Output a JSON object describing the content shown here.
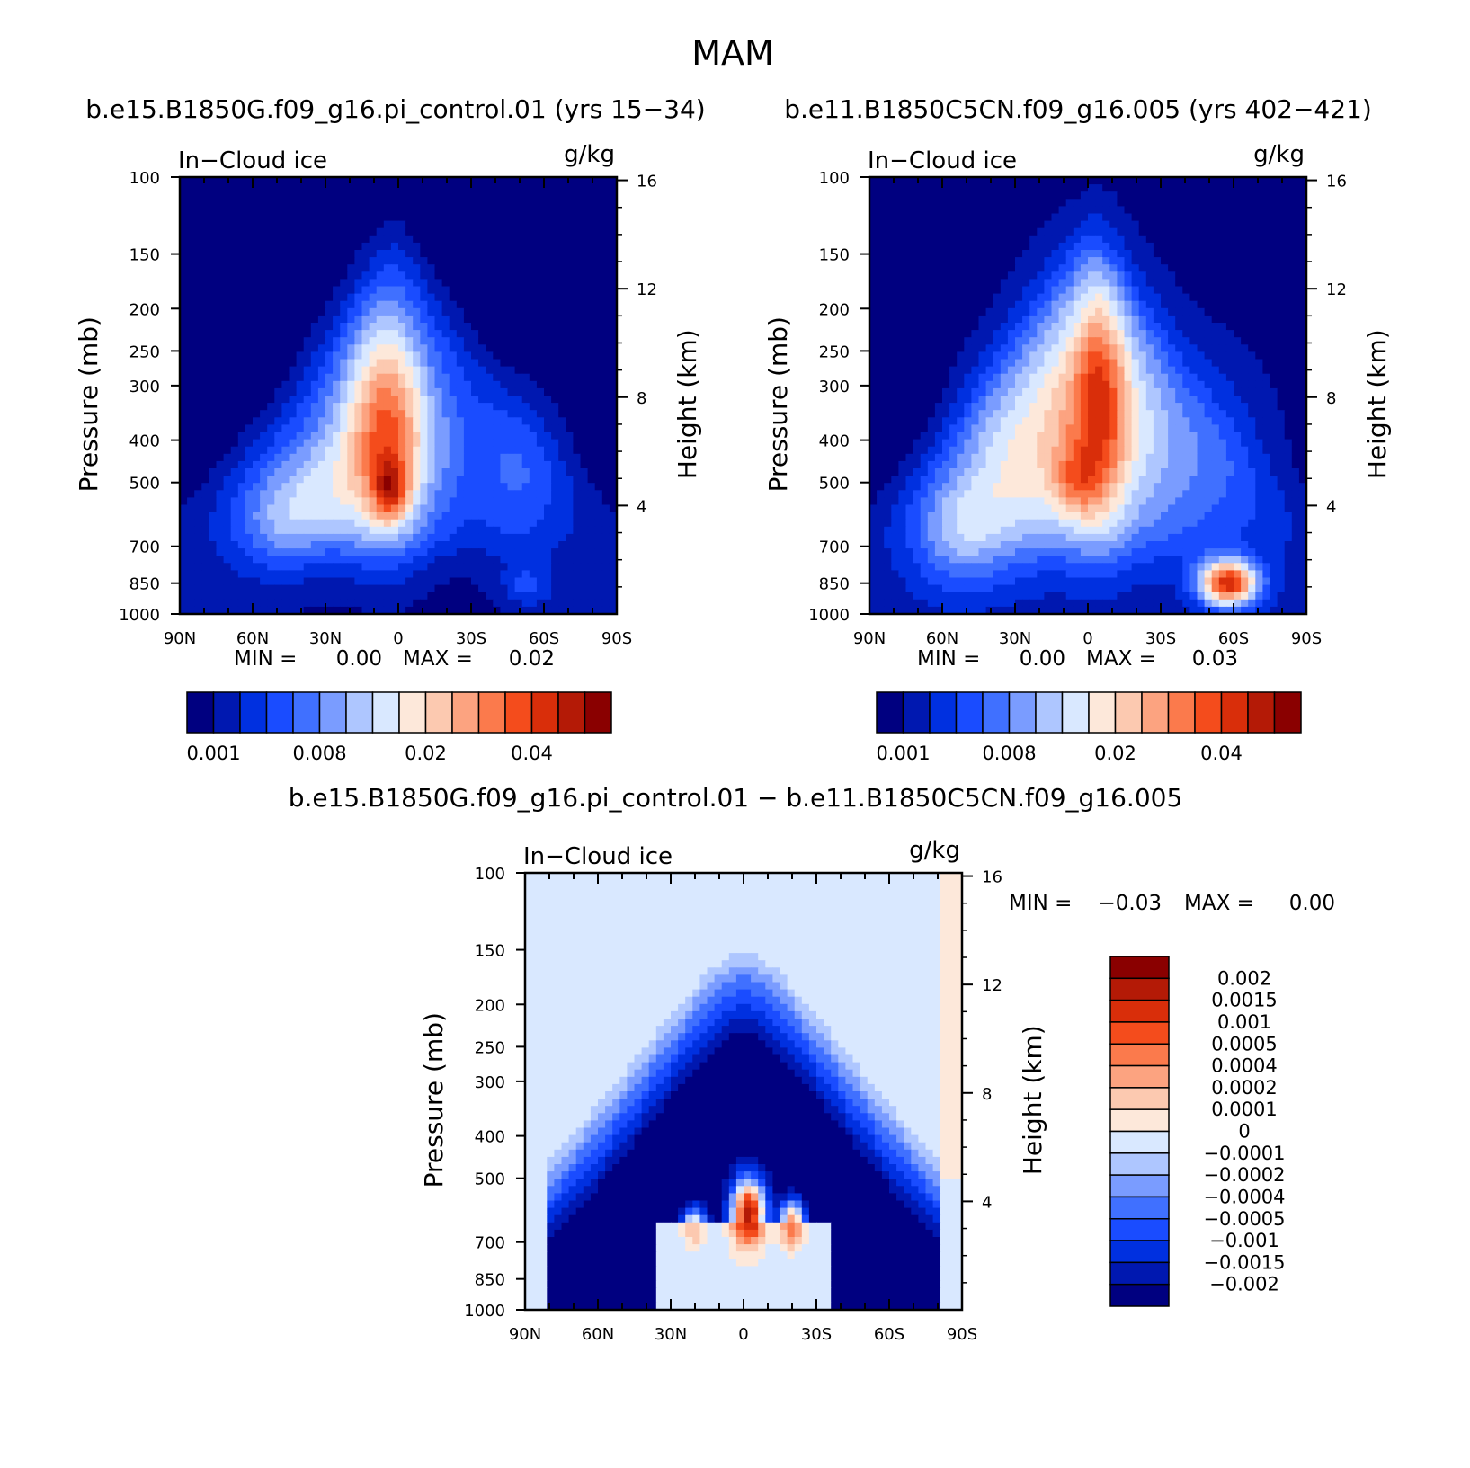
{
  "figure": {
    "title": "MAM"
  },
  "chart_data": [
    {
      "type": "heatmap",
      "id": "p1",
      "title": "b.e15.B1850G.f09_g16.pi_control.01 (yrs 15−34)",
      "left_label": "In−Cloud ice",
      "right_label": "g/kg",
      "ylabel": "Pressure (mb)",
      "y2label": "Height (km)",
      "xticks": [
        "90N",
        "60N",
        "30N",
        "0",
        "30S",
        "60S",
        "90S"
      ],
      "yticks": [
        "100",
        "150",
        "200",
        "250",
        "300",
        "400",
        "500",
        "700",
        "850",
        "1000"
      ],
      "y2ticks": [
        "16",
        "12",
        "8",
        "4"
      ],
      "xlim": [
        90,
        -90
      ],
      "ylim": [
        1000,
        100
      ],
      "min_text": "MIN =",
      "min_value": "0.00",
      "max_text": "MAX =",
      "max_value": "0.02",
      "colorbar_labels": [
        "0.001",
        "0.008",
        "0.02",
        "0.04"
      ],
      "levels": 16,
      "blobs": [
        {
          "lat": 5,
          "p": 400,
          "wlat": 28,
          "wp": 320,
          "v": 7
        },
        {
          "lat": 5,
          "p": 330,
          "wlat": 14,
          "wp": 330,
          "v": 4
        },
        {
          "lat": 3,
          "p": 520,
          "wlat": 7,
          "wp": 90,
          "v": 5
        },
        {
          "lat": 35,
          "p": 520,
          "wlat": 24,
          "wp": 200,
          "v": 3
        },
        {
          "lat": 50,
          "p": 620,
          "wlat": 20,
          "wp": 200,
          "v": 3
        },
        {
          "lat": -50,
          "p": 470,
          "wlat": 20,
          "wp": 280,
          "v": 2.5
        },
        {
          "lat": -53,
          "p": 860,
          "wlat": 10,
          "wp": 90,
          "v": 2
        }
      ]
    },
    {
      "type": "heatmap",
      "id": "p2",
      "title": "b.e11.B1850C5CN.f09_g16.005 (yrs 402−421)",
      "left_label": "In−Cloud ice",
      "right_label": "g/kg",
      "ylabel": "Pressure (mb)",
      "y2label": "Height (km)",
      "xticks": [
        "90N",
        "60N",
        "30N",
        "0",
        "30S",
        "60S",
        "90S"
      ],
      "yticks": [
        "100",
        "150",
        "200",
        "250",
        "300",
        "400",
        "500",
        "700",
        "850",
        "1000"
      ],
      "y2ticks": [
        "16",
        "12",
        "8",
        "4"
      ],
      "xlim": [
        90,
        -90
      ],
      "ylim": [
        1000,
        100
      ],
      "min_text": "MIN =",
      "min_value": "0.00",
      "max_text": "MAX =",
      "max_value": "0.03",
      "colorbar_labels": [
        "0.001",
        "0.008",
        "0.02",
        "0.04"
      ],
      "levels": 16,
      "blobs": [
        {
          "lat": 0,
          "p": 350,
          "wlat": 28,
          "wp": 400,
          "v": 8
        },
        {
          "lat": -5,
          "p": 300,
          "wlat": 10,
          "wp": 280,
          "v": 4
        },
        {
          "lat": 35,
          "p": 460,
          "wlat": 22,
          "wp": 350,
          "v": 4.5
        },
        {
          "lat": 55,
          "p": 640,
          "wlat": 20,
          "wp": 250,
          "v": 4
        },
        {
          "lat": -58,
          "p": 850,
          "wlat": 12,
          "wp": 110,
          "v": 12
        },
        {
          "lat": -45,
          "p": 430,
          "wlat": 35,
          "wp": 380,
          "v": 3
        },
        {
          "lat": 5,
          "p": 500,
          "wlat": 10,
          "wp": 100,
          "v": 3
        }
      ]
    },
    {
      "type": "heatmap",
      "id": "p3",
      "title": "b.e15.B1850G.f09_g16.pi_control.01 − b.e11.B1850C5CN.f09_g16.005",
      "left_label": "In−Cloud ice",
      "right_label": "g/kg",
      "ylabel": "Pressure (mb)",
      "y2label": "Height (km)",
      "xticks": [
        "90N",
        "60N",
        "30N",
        "0",
        "30S",
        "60S",
        "90S"
      ],
      "yticks": [
        "100",
        "150",
        "200",
        "250",
        "300",
        "400",
        "500",
        "700",
        "850",
        "1000"
      ],
      "y2ticks": [
        "16",
        "12",
        "8",
        "4"
      ],
      "xlim": [
        90,
        -90
      ],
      "ylim": [
        1000,
        100
      ],
      "min_text": "MIN =",
      "min_value": "−0.03",
      "max_text": "MAX =",
      "max_value": "0.00",
      "colorbar_labels": [
        "0.002",
        "0.0015",
        "0.001",
        "0.0005",
        "0.0004",
        "0.0002",
        "0.0001",
        "0",
        "−0.0001",
        "−0.0002",
        "−0.0004",
        "−0.0005",
        "−0.001",
        "−0.0015",
        "−0.002"
      ],
      "levels": 16
    }
  ],
  "colors": {
    "seq": [
      "#000080",
      "#0018b0",
      "#0030e0",
      "#1a4cff",
      "#4070ff",
      "#7a9cff",
      "#aec6ff",
      "#d9e8ff",
      "#fde8da",
      "#fcc9b0",
      "#fca380",
      "#fb7a4c",
      "#f44c1c",
      "#d92e0a",
      "#b41a06",
      "#8a0000"
    ],
    "diff": [
      "#000080",
      "#0018b0",
      "#0030e0",
      "#1a4cff",
      "#4070ff",
      "#7a9cff",
      "#aec6ff",
      "#d9e8ff",
      "#fde8da",
      "#fcc9b0",
      "#fca380",
      "#fb7a4c",
      "#f44c1c",
      "#d92e0a",
      "#b41a06",
      "#8a0000"
    ]
  }
}
